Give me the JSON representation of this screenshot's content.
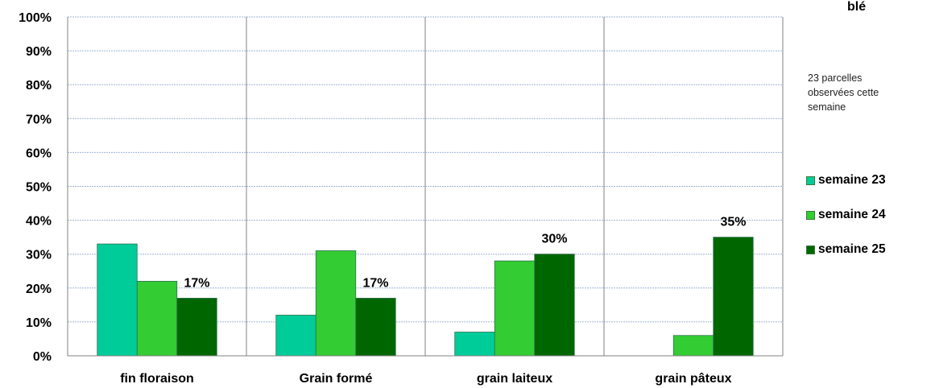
{
  "chart_data": {
    "type": "bar",
    "title": "blé",
    "categories": [
      "fin floraison",
      "Grain formé",
      "grain laiteux",
      "grain pâteux"
    ],
    "series": [
      {
        "name": "semaine 23",
        "color": "#00cc99",
        "values": [
          33,
          12,
          7,
          0
        ]
      },
      {
        "name": "semaine 24",
        "color": "#33cc33",
        "values": [
          22,
          31,
          28,
          6
        ]
      },
      {
        "name": "semaine 25",
        "color": "#006600",
        "values": [
          17,
          17,
          30,
          35
        ]
      }
    ],
    "data_labels": [
      {
        "series": 2,
        "category": 0,
        "text": "17%"
      },
      {
        "series": 2,
        "category": 1,
        "text": "17%"
      },
      {
        "series": 2,
        "category": 2,
        "text": "30%"
      },
      {
        "series": 2,
        "category": 3,
        "text": "35%"
      }
    ],
    "y_ticks": [
      "0%",
      "10%",
      "20%",
      "30%",
      "40%",
      "50%",
      "60%",
      "70%",
      "80%",
      "90%",
      "100%"
    ],
    "ylim": [
      0,
      100
    ],
    "grid": true,
    "legend_position": "right",
    "note": "23 parcelles observées cette semaine"
  }
}
